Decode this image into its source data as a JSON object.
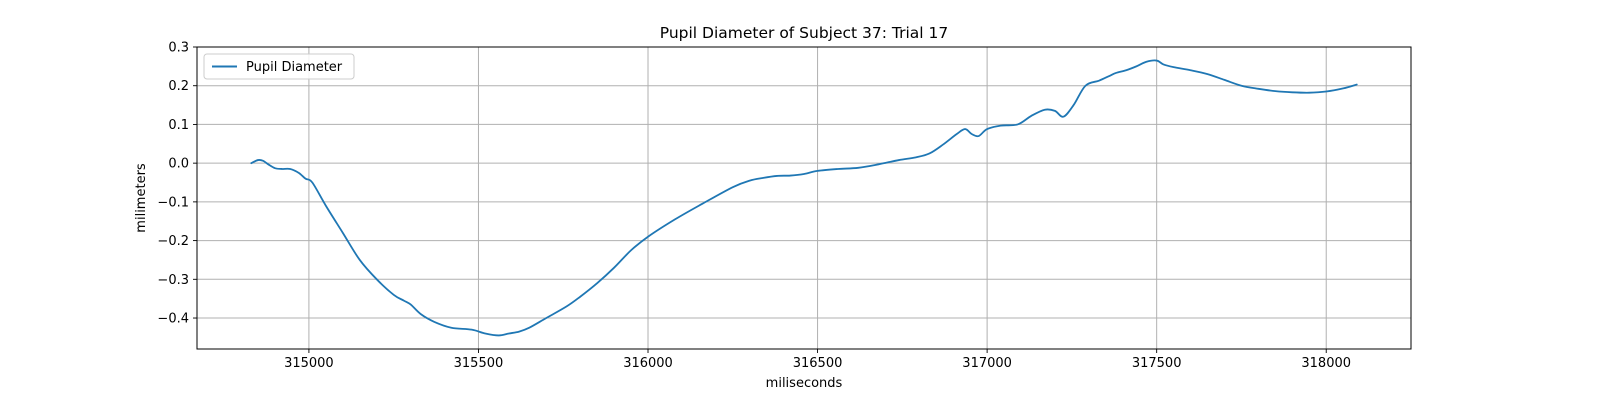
{
  "chart_data": {
    "type": "line",
    "title": "Pupil Diameter of Subject 37: Trial 17",
    "xlabel": "miliseconds",
    "ylabel": "milimeters",
    "xlim": [
      314670,
      318250
    ],
    "ylim": [
      -0.48,
      0.3
    ],
    "xticks": [
      315000,
      315500,
      316000,
      316500,
      317000,
      317500,
      318000
    ],
    "yticks": [
      -0.4,
      -0.3,
      -0.2,
      -0.1,
      0.0,
      0.1,
      0.2,
      0.3
    ],
    "ytick_labels": [
      "−0.4",
      "−0.3",
      "−0.2",
      "−0.1",
      "0.0",
      "0.1",
      "0.2",
      "0.3"
    ],
    "grid": true,
    "legend_position": "top-left",
    "series": [
      {
        "name": "Pupil Diameter",
        "color": "#1f77b4",
        "x": [
          314830,
          314850,
          314865,
          314880,
          314900,
          314920,
          314945,
          314970,
          314990,
          315010,
          315050,
          315100,
          315150,
          315200,
          315250,
          315280,
          315300,
          315330,
          315370,
          315420,
          315480,
          315520,
          315560,
          315590,
          315620,
          315650,
          315700,
          315760,
          315800,
          315850,
          315900,
          315950,
          316000,
          316080,
          316160,
          316250,
          316300,
          316340,
          316380,
          316420,
          316460,
          316500,
          316560,
          316620,
          316680,
          316740,
          316790,
          316830,
          316870,
          316910,
          316935,
          316955,
          316975,
          317000,
          317040,
          317090,
          317130,
          317170,
          317200,
          317225,
          317255,
          317290,
          317330,
          317360,
          317380,
          317410,
          317440,
          317470,
          317500,
          317520,
          317550,
          317600,
          317650,
          317700,
          317750,
          317800,
          317850,
          317900,
          317950,
          318000,
          318050,
          318090
        ],
        "values": [
          0.0,
          0.008,
          0.006,
          -0.003,
          -0.013,
          -0.015,
          -0.015,
          -0.025,
          -0.04,
          -0.05,
          -0.11,
          -0.18,
          -0.25,
          -0.3,
          -0.34,
          -0.355,
          -0.365,
          -0.39,
          -0.41,
          -0.425,
          -0.43,
          -0.44,
          -0.445,
          -0.44,
          -0.435,
          -0.425,
          -0.4,
          -0.37,
          -0.345,
          -0.31,
          -0.27,
          -0.225,
          -0.19,
          -0.145,
          -0.105,
          -0.062,
          -0.045,
          -0.038,
          -0.033,
          -0.032,
          -0.028,
          -0.02,
          -0.015,
          -0.012,
          -0.003,
          0.008,
          0.015,
          0.025,
          0.048,
          0.075,
          0.088,
          0.075,
          0.07,
          0.088,
          0.097,
          0.1,
          0.122,
          0.138,
          0.135,
          0.12,
          0.15,
          0.2,
          0.213,
          0.225,
          0.233,
          0.24,
          0.25,
          0.262,
          0.265,
          0.255,
          0.248,
          0.24,
          0.23,
          0.215,
          0.2,
          0.192,
          0.186,
          0.183,
          0.182,
          0.185,
          0.193,
          0.203
        ]
      }
    ]
  }
}
